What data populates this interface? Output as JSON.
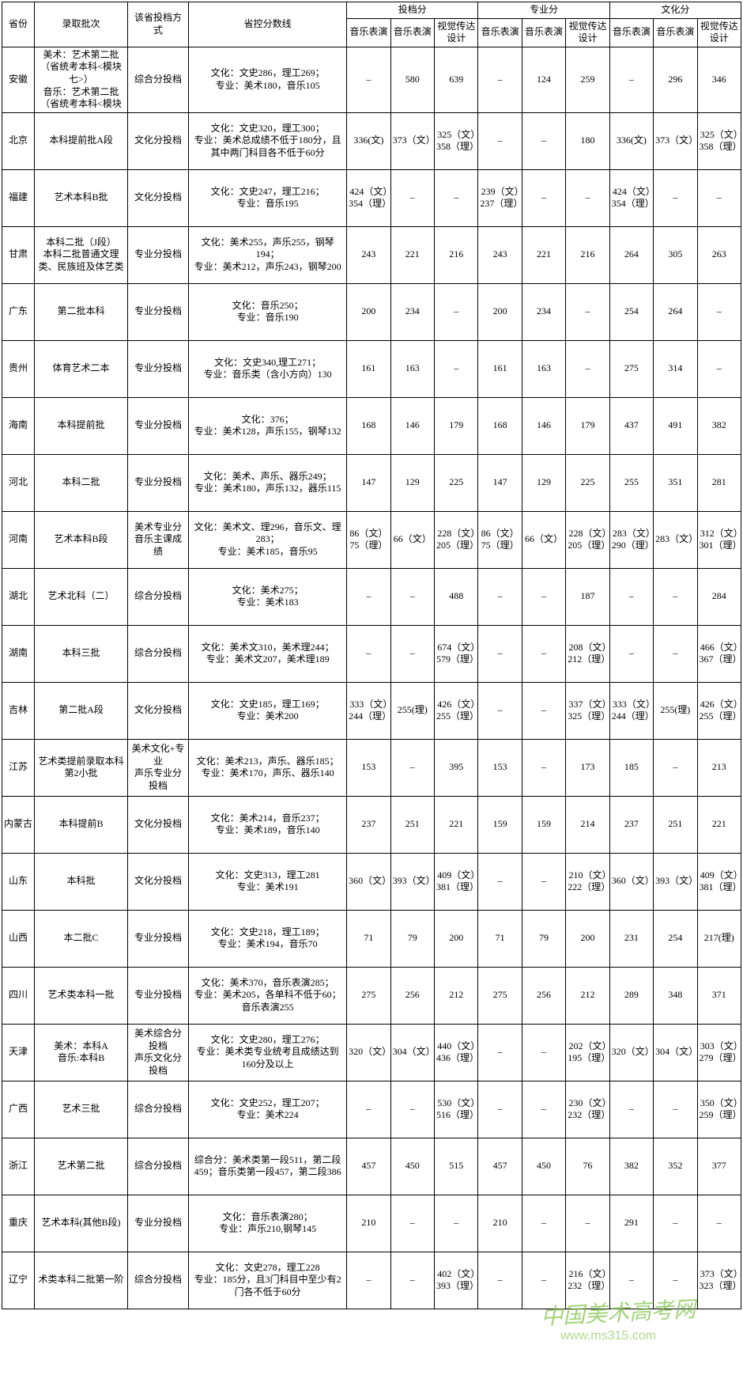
{
  "watermark": {
    "main": "中国美术高考网",
    "sub": "www.ms315.com"
  },
  "header": {
    "province": "省份",
    "batch": "录取批次",
    "method": "该省投档方式",
    "control_line": "省控分数线",
    "group_tou": "投档分",
    "group_zhuan": "专业分",
    "group_wen": "文化分",
    "sub_yinyue1": "音乐表演",
    "sub_yinyue2": "音乐表演",
    "sub_shijue": "视觉传达设计"
  },
  "rows": [
    {
      "province": "安徽",
      "batch": "美术：艺术第二批（省统考本科<模块七>）\n音乐：艺术第二批（省统考本科<模块",
      "method": "综合分投档",
      "control": "文化：文史286，理工269；\n专业：美术180，音乐105",
      "t1": "–",
      "t2": "580",
      "t3": "639",
      "z1": "–",
      "z2": "124",
      "z3": "259",
      "w1": "–",
      "w2": "296",
      "w3": "346"
    },
    {
      "province": "北京",
      "batch": "本科提前批A段",
      "method": "文化分投档",
      "control": "文化：文史320，理工300；\n专业：美术总成绩不低于180分，且其中两门科目各不低于60分",
      "t1": "336(文)",
      "t2": "373（文）",
      "t3": "325（文）358（理）",
      "z1": "–",
      "z2": "–",
      "z3": "180",
      "w1": "336(文)",
      "w2": "373（文）",
      "w3": "325（文）358（理）"
    },
    {
      "province": "福建",
      "batch": "艺术本科B批",
      "method": "文化分投档",
      "control": "文化：文史247，理工216；\n专业：音乐195",
      "t1": "424（文）354（理）",
      "t2": "–",
      "t3": "–",
      "z1": "239（文）237（理）",
      "z2": "–",
      "z3": "–",
      "w1": "424（文）354（理）",
      "w2": "–",
      "w3": "–"
    },
    {
      "province": "甘肃",
      "batch": "本科二批（J段）\n本科二批普通文理类、民族班及体艺类",
      "method": "专业分投档",
      "control": "文化：美术255，声乐255，钢琴194；\n专业：美术212，声乐243，钢琴200",
      "t1": "243",
      "t2": "221",
      "t3": "216",
      "z1": "243",
      "z2": "221",
      "z3": "216",
      "w1": "264",
      "w2": "305",
      "w3": "263"
    },
    {
      "province": "广东",
      "batch": "第二批本科",
      "method": "专业分投档",
      "control": "文化：音乐250；\n专业：音乐190",
      "t1": "200",
      "t2": "234",
      "t3": "–",
      "z1": "200",
      "z2": "234",
      "z3": "–",
      "w1": "254",
      "w2": "264",
      "w3": "–"
    },
    {
      "province": "贵州",
      "batch": "体育艺术二本",
      "method": "专业分投档",
      "control": "文化：文史340,理工271；\n专业：音乐类（含小方向）130",
      "t1": "161",
      "t2": "163",
      "t3": "–",
      "z1": "161",
      "z2": "163",
      "z3": "–",
      "w1": "275",
      "w2": "314",
      "w3": "–"
    },
    {
      "province": "海南",
      "batch": "本科提前批",
      "method": "专业分投档",
      "control": "文化：376；\n专业：美术128，声乐155，钢琴132",
      "t1": "168",
      "t2": "146",
      "t3": "179",
      "z1": "168",
      "z2": "146",
      "z3": "179",
      "w1": "437",
      "w2": "491",
      "w3": "382"
    },
    {
      "province": "河北",
      "batch": "本科二批",
      "method": "专业分投档",
      "control": "文化：美术、声乐、器乐249；\n专业：美术180，声乐132，器乐115",
      "t1": "147",
      "t2": "129",
      "t3": "225",
      "z1": "147",
      "z2": "129",
      "z3": "225",
      "w1": "255",
      "w2": "351",
      "w3": "281"
    },
    {
      "province": "河南",
      "batch": "艺术本科B段",
      "method": "美术专业分\n音乐主课成绩",
      "control": "文化：美术文、理296，音乐文、理283；\n专业：美术185，音乐95",
      "t1": "86（文）75（理）",
      "t2": "66（文）",
      "t3": "228（文）205（理）",
      "z1": "86（文）75（理）",
      "z2": "66（文）",
      "z3": "228（文）205（理）",
      "w1": "283（文）290（理）",
      "w2": "283（文）",
      "w3": "312（文）301（理）"
    },
    {
      "province": "湖北",
      "batch": "艺术北科（二）",
      "method": "综合分投档",
      "control": "文化：美术275；\n专业：美术183",
      "t1": "–",
      "t2": "–",
      "t3": "488",
      "z1": "–",
      "z2": "–",
      "z3": "187",
      "w1": "–",
      "w2": "–",
      "w3": "284"
    },
    {
      "province": "湖南",
      "batch": "本科三批",
      "method": "综合分投档",
      "control": "文化：美术文310，美术理244；\n专业：美术文207，美术理189",
      "t1": "–",
      "t2": "–",
      "t3": "674（文）579（理）",
      "z1": "–",
      "z2": "–",
      "z3": "208（文）212（理）",
      "w1": "–",
      "w2": "–",
      "w3": "466（文）367（理）"
    },
    {
      "province": "吉林",
      "batch": "第二批A段",
      "method": "文化分投档",
      "control": "文化：文史185，理工169；\n专业：美术200",
      "t1": "333（文）244（理）",
      "t2": "255(理)",
      "t3": "426（文）255（理）",
      "z1": "–",
      "z2": "–",
      "z3": "337（文）325（理）",
      "w1": "333（文）244（理）",
      "w2": "255(理)",
      "w3": "426（文）255（理）"
    },
    {
      "province": "江苏",
      "batch": "艺术类提前录取本科第2小批",
      "method": "美术文化+专业\n声乐专业分投档",
      "control": "文化：美术213，声乐、器乐185；\n专业：美术170，声乐、器乐140",
      "t1": "153",
      "t2": "–",
      "t3": "395",
      "z1": "153",
      "z2": "–",
      "z3": "173",
      "w1": "185",
      "w2": "–",
      "w3": "213"
    },
    {
      "province": "内蒙古",
      "batch": "本科提前B",
      "method": "文化分投档",
      "control": "文化：美术214，音乐237；\n专业：美术189，音乐140",
      "t1": "237",
      "t2": "251",
      "t3": "221",
      "z1": "159",
      "z2": "159",
      "z3": "214",
      "w1": "237",
      "w2": "251",
      "w3": "221"
    },
    {
      "province": "山东",
      "batch": "本科批",
      "method": "文化分投档",
      "control": "文化：文史313，理工281\n专业：美术191",
      "t1": "360（文）",
      "t2": "393（文）",
      "t3": "409（文）381（理）",
      "z1": "–",
      "z2": "–",
      "z3": "210（文）222（理）",
      "w1": "360（文）",
      "w2": "393（文）",
      "w3": "409（文）381（理）"
    },
    {
      "province": "山西",
      "batch": "本二批C",
      "method": "专业分投档",
      "control": "文化：文史218，理工189；\n专业：美术194，音乐70",
      "t1": "71",
      "t2": "79",
      "t3": "200",
      "z1": "71",
      "z2": "79",
      "z3": "200",
      "w1": "231",
      "w2": "254",
      "w3": "217(理)"
    },
    {
      "province": "四川",
      "batch": "艺术类本科一批",
      "method": "专业分投档",
      "control": "文化：美术370，音乐表演285；\n专业：美术205，各单科不低于60；音乐表演255",
      "t1": "275",
      "t2": "256",
      "t3": "212",
      "z1": "275",
      "z2": "256",
      "z3": "212",
      "w1": "289",
      "w2": "348",
      "w3": "371"
    },
    {
      "province": "天津",
      "batch": "美术：本科A\n音乐:本科B",
      "method": "美术综合分投档\n声乐文化分投档",
      "control": "文化：文史280，理工276；\n专业：美术类专业统考且成绩达到160分及以上",
      "t1": "320（文）",
      "t2": "304（文）",
      "t3": "440（文）436（理）",
      "z1": "–",
      "z2": "–",
      "z3": "202（文）195（理）",
      "w1": "320（文）",
      "w2": "304（文）",
      "w3": "303（文）279（理）"
    },
    {
      "province": "广西",
      "batch": "艺术三批",
      "method": "综合分投档",
      "control": "文化：文史252，理工207；\n专业：美术224",
      "t1": "–",
      "t2": "–",
      "t3": "530（文）516（理）",
      "z1": "–",
      "z2": "–",
      "z3": "230（文）232（理）",
      "w1": "–",
      "w2": "–",
      "w3": "350（文）259（理）"
    },
    {
      "province": "浙江",
      "batch": "艺术第二批",
      "method": "综合分投档",
      "control": "综合分：美术类第一段511，第二段459；音乐类第一段457，第二段386",
      "t1": "457",
      "t2": "450",
      "t3": "515",
      "z1": "457",
      "z2": "450",
      "z3": "76",
      "w1": "382",
      "w2": "352",
      "w3": "377"
    },
    {
      "province": "重庆",
      "batch": "艺术本科(其他B段)",
      "method": "专业分投档",
      "control": "文化：音乐表演280；\n专业：声乐210,钢琴145",
      "t1": "210",
      "t2": "–",
      "t3": "–",
      "z1": "210",
      "z2": "–",
      "z3": "–",
      "w1": "291",
      "w2": "–",
      "w3": "–"
    },
    {
      "province": "辽宁",
      "batch": "术类本科二批第一阶",
      "method": "综合分投档",
      "control": "文化：文史278，理工228\n专业：185分，且3门科目中至少有2门各不低于60分",
      "t1": "–",
      "t2": "–",
      "t3": "402（文）393（理）",
      "z1": "–",
      "z2": "–",
      "z3": "216（文）232（理）",
      "w1": "–",
      "w2": "–",
      "w3": "373（文）323（理）"
    }
  ]
}
